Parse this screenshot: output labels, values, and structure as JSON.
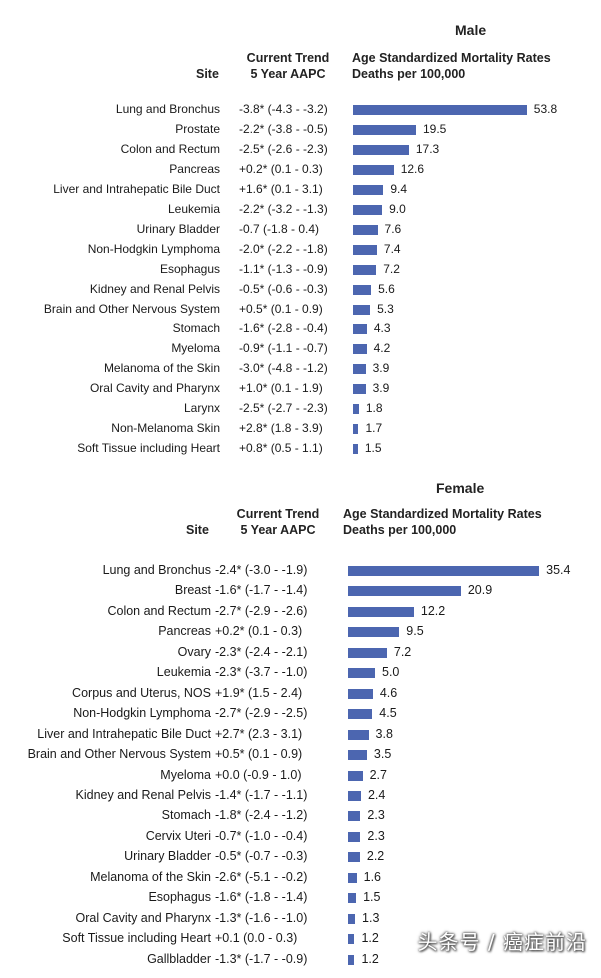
{
  "chart_data": [
    {
      "type": "bar",
      "orientation": "horizontal",
      "title": "Male",
      "column_headers": {
        "site": "Site",
        "trend_line1": "Current Trend",
        "trend_line2": "5 Year AAPC",
        "rate_line1": "Age Standardized Mortality Rates",
        "rate_line2": "Deaths per 100,000"
      },
      "categories": [
        "Lung and Bronchus",
        "Prostate",
        "Colon and Rectum",
        "Pancreas",
        "Liver and Intrahepatic Bile Duct",
        "Leukemia",
        "Urinary Bladder",
        "Non-Hodgkin Lymphoma",
        "Esophagus",
        "Kidney and Renal Pelvis",
        "Brain and Other Nervous System",
        "Stomach",
        "Myeloma",
        "Melanoma of the Skin",
        "Oral Cavity and Pharynx",
        "Larynx",
        "Non-Melanoma Skin",
        "Soft Tissue including Heart"
      ],
      "trends": [
        "-3.8* (-4.3 - -3.2)",
        "-2.2* (-3.8 - -0.5)",
        "-2.5* (-2.6 - -2.3)",
        "+0.2* (0.1 - 0.3)",
        "+1.6* (0.1 - 3.1)",
        "-2.2* (-3.2 - -1.3)",
        "-0.7 (-1.8 - 0.4)",
        "-2.0* (-2.2 - -1.8)",
        "-1.1* (-1.3 - -0.9)",
        "-0.5* (-0.6 - -0.3)",
        "+0.5* (0.1 - 0.9)",
        "-1.6* (-2.8 - -0.4)",
        "-0.9* (-1.1 - -0.7)",
        "-3.0* (-4.8 - -1.2)",
        "+1.0* (0.1 - 1.9)",
        "-2.5* (-2.7 - -2.3)",
        "+2.8* (1.8 - 3.9)",
        "+0.8* (0.5 - 1.1)"
      ],
      "values": [
        53.8,
        19.5,
        17.3,
        12.6,
        9.4,
        9.0,
        7.6,
        7.4,
        7.2,
        5.6,
        5.3,
        4.3,
        4.2,
        3.9,
        3.9,
        1.8,
        1.7,
        1.5
      ],
      "labels": [
        "53.8",
        "19.5",
        "17.3",
        "12.6",
        "9.4",
        "9.0",
        "7.6",
        "7.4",
        "7.2",
        "5.6",
        "5.3",
        "4.3",
        "4.2",
        "3.9",
        "3.9",
        "1.8",
        "1.7",
        "1.5"
      ],
      "bar_color": "#4c66b0"
    },
    {
      "type": "bar",
      "orientation": "horizontal",
      "title": "Female",
      "column_headers": {
        "site": "Site",
        "trend_line1": "Current Trend",
        "trend_line2": "5 Year AAPC",
        "rate_line1": "Age Standardized Mortality Rates",
        "rate_line2": "Deaths per 100,000"
      },
      "categories": [
        "Lung and Bronchus",
        "Breast",
        "Colon and Rectum",
        "Pancreas",
        "Ovary",
        "Leukemia",
        "Corpus and Uterus, NOS",
        "Non-Hodgkin Lymphoma",
        "Liver and Intrahepatic Bile Duct",
        "Brain and Other Nervous System",
        "Myeloma",
        "Kidney and Renal Pelvis",
        "Stomach",
        "Cervix Uteri",
        "Urinary Bladder",
        "Melanoma of the Skin",
        "Esophagus",
        "Oral Cavity and Pharynx",
        "Soft Tissue including Heart",
        "Gallbladder"
      ],
      "trends": [
        "-2.4* (-3.0 - -1.9)",
        "-1.6* (-1.7 - -1.4)",
        "-2.7* (-2.9 - -2.6)",
        "+0.2* (0.1 - 0.3)",
        "-2.3* (-2.4 - -2.1)",
        "-2.3* (-3.7 - -1.0)",
        "+1.9* (1.5 - 2.4)",
        "-2.7* (-2.9 - -2.5)",
        "+2.7* (2.3 - 3.1)",
        "+0.5* (0.1 - 0.9)",
        "+0.0 (-0.9 - 1.0)",
        "-1.4* (-1.7 - -1.1)",
        "-1.8* (-2.4 - -1.2)",
        "-0.7* (-1.0 - -0.4)",
        "-0.5* (-0.7 - -0.3)",
        "-2.6* (-5.1 - -0.2)",
        "-1.6* (-1.8 - -1.4)",
        "-1.3* (-1.6 - -1.0)",
        "+0.1 (0.0 - 0.3)",
        "-1.3* (-1.7 - -0.9)"
      ],
      "values": [
        35.4,
        20.9,
        12.2,
        9.5,
        7.2,
        5.0,
        4.6,
        4.5,
        3.8,
        3.5,
        2.7,
        2.4,
        2.3,
        2.3,
        2.2,
        1.6,
        1.5,
        1.3,
        1.2,
        1.2
      ],
      "labels": [
        "35.4",
        "20.9",
        "12.2",
        "9.5",
        "7.2",
        "5.0",
        "4.6",
        "4.5",
        "3.8",
        "3.5",
        "2.7",
        "2.4",
        "2.3",
        "2.3",
        "2.2",
        "1.6",
        "1.5",
        "1.3",
        "1.2",
        "1.2"
      ],
      "bar_color": "#4c66b0"
    }
  ],
  "watermark": "头条号 / 癌症前沿"
}
